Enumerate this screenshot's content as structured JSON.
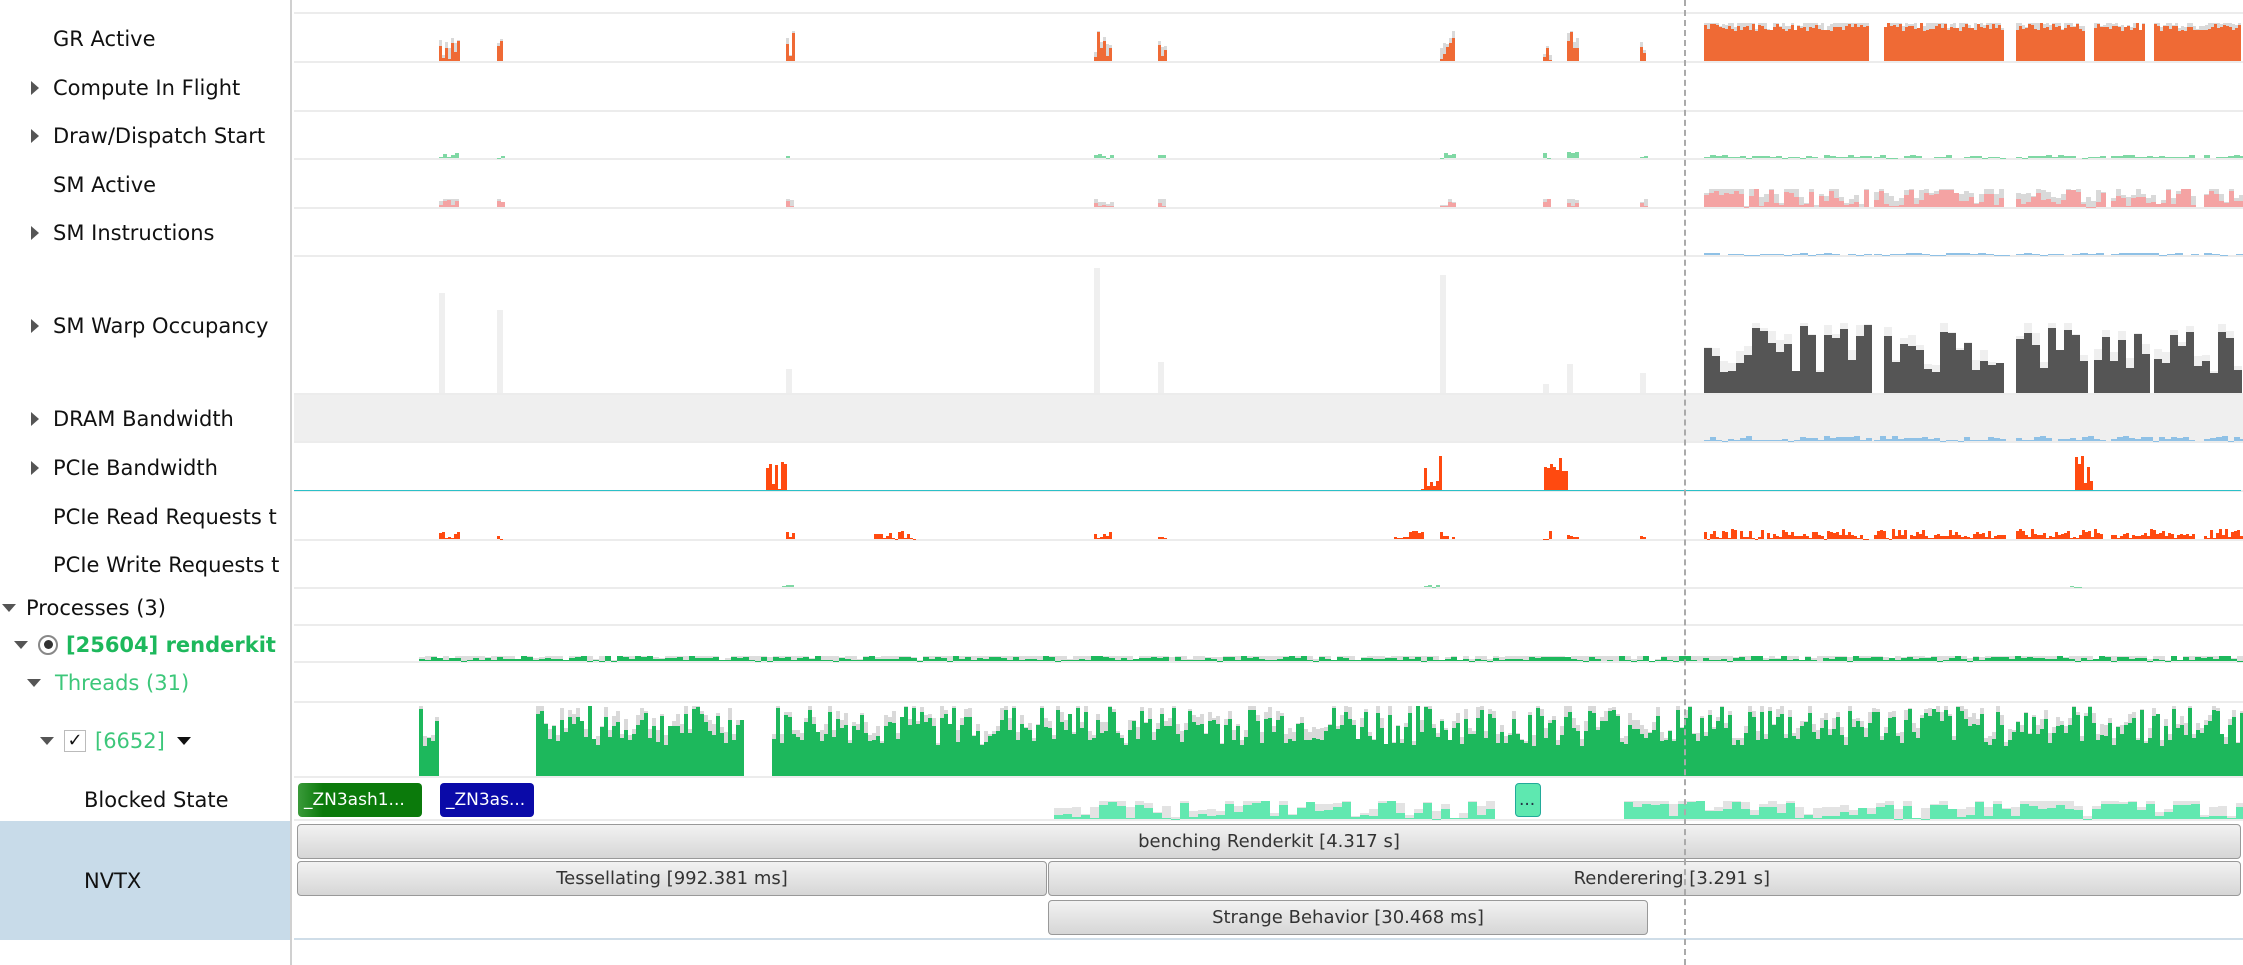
{
  "tracks": {
    "gr_active": "GR Active",
    "compute_in_flight": "Compute In Flight",
    "draw_dispatch": "Draw/Dispatch Start",
    "sm_active": "SM Active",
    "sm_instructions": "SM Instructions",
    "sm_warp": "SM Warp Occupancy",
    "dram": "DRAM Bandwidth",
    "pcie_bw": "PCIe Bandwidth",
    "pcie_read": "PCIe Read Requests t",
    "pcie_write": "PCIe Write Requests t"
  },
  "processes": {
    "label": "Processes (3)",
    "process": "[25604] renderkit",
    "threads": "Threads (31)",
    "thread": "[6652]",
    "thread_checked": "✓",
    "blocked": "Blocked State",
    "blocked_chips": [
      "_ZN3ash1...",
      "_ZN3as...",
      "..."
    ]
  },
  "nvtx": {
    "label": "NVTX",
    "ranges": [
      {
        "label": "benching Renderkit [4.317 s]"
      },
      {
        "label": "Tessellating [992.381 ms]"
      },
      {
        "label": "Renderering [3.291 s]"
      },
      {
        "label": "Strange Behavior [30.468 ms]"
      }
    ]
  },
  "colors": {
    "gr": "#ef6a35",
    "draw": "#7fd8a4",
    "sm": "#f4a3a3",
    "inst": "#8fc1e6",
    "pcie": "#ff4a10",
    "thread": "#1db85c",
    "blocked": "#62e8b0",
    "process": "#1db85c"
  }
}
